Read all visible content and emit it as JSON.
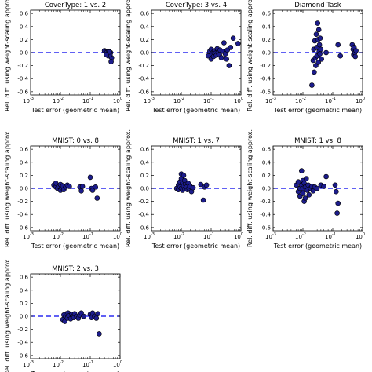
{
  "chart_data": [
    {
      "type": "scatter",
      "title": "CoverType: 1 vs. 2",
      "xlabel": "Test error (geometric mean)",
      "ylabel": "Rel. diff. using weight-scaling approx.",
      "xscale": "log",
      "xlim": [
        0.001,
        1
      ],
      "ylim": [
        -0.65,
        0.65
      ],
      "xticks": [
        "10^-3",
        "10^-2",
        "10^-1",
        "10^0"
      ],
      "yticks": [
        "0.6",
        "0.4",
        "0.2",
        "0.0",
        "-0.2",
        "-0.4",
        "-0.6"
      ],
      "reference_line": 0.0,
      "points": [
        [
          0.3,
          0.03
        ],
        [
          0.34,
          0.01
        ],
        [
          0.38,
          -0.01
        ],
        [
          0.36,
          0.0
        ],
        [
          0.42,
          0.02
        ],
        [
          0.45,
          -0.02
        ],
        [
          0.4,
          -0.05
        ],
        [
          0.48,
          0.0
        ],
        [
          0.52,
          -0.08
        ],
        [
          0.5,
          -0.14
        ],
        [
          0.46,
          -0.03
        ],
        [
          0.35,
          -0.03
        ],
        [
          0.44,
          0.01
        ]
      ]
    },
    {
      "type": "scatter",
      "title": "CoverType: 3 vs. 4",
      "xlabel": "Test error (geometric mean)",
      "ylabel": "Rel. diff. using weight-scaling approx.",
      "xscale": "log",
      "xlim": [
        0.001,
        1
      ],
      "ylim": [
        -0.65,
        0.65
      ],
      "xticks": [
        "10^-3",
        "10^-2",
        "10^-1",
        "10^0"
      ],
      "yticks": [
        "0.6",
        "0.4",
        "0.2",
        "0.0",
        "-0.2",
        "-0.4",
        "-0.6"
      ],
      "reference_line": 0.0,
      "points": [
        [
          0.08,
          -0.05
        ],
        [
          0.09,
          0.02
        ],
        [
          0.1,
          -0.1
        ],
        [
          0.1,
          0.05
        ],
        [
          0.11,
          -0.03
        ],
        [
          0.12,
          0.01
        ],
        [
          0.12,
          -0.06
        ],
        [
          0.13,
          0.03
        ],
        [
          0.14,
          -0.01
        ],
        [
          0.15,
          -0.04
        ],
        [
          0.16,
          0.06
        ],
        [
          0.17,
          0.0
        ],
        [
          0.19,
          -0.03
        ],
        [
          0.2,
          0.04
        ],
        [
          0.22,
          -0.08
        ],
        [
          0.25,
          0.02
        ],
        [
          0.27,
          0.15
        ],
        [
          0.3,
          -0.02
        ],
        [
          0.33,
          -0.1
        ],
        [
          0.35,
          0.04
        ],
        [
          0.4,
          -0.2
        ],
        [
          0.45,
          0.08
        ],
        [
          0.55,
          0.22
        ],
        [
          0.8,
          0.14
        ]
      ]
    },
    {
      "type": "scatter",
      "title": "Diamond Task",
      "xlabel": "Test error (geometric mean)",
      "ylabel": "Rel. diff. using weight-scaling approx.",
      "xscale": "log",
      "xlim": [
        0.001,
        1
      ],
      "ylim": [
        -0.65,
        0.65
      ],
      "xticks": [
        "10^-3",
        "10^-2",
        "10^-1",
        "10^0"
      ],
      "yticks": [
        "0.6",
        "0.4",
        "0.2",
        "0.0",
        "-0.2",
        "-0.4",
        "-0.6"
      ],
      "reference_line": 0.0,
      "points": [
        [
          0.02,
          -0.5
        ],
        [
          0.022,
          -0.12
        ],
        [
          0.023,
          0.05
        ],
        [
          0.024,
          -0.3
        ],
        [
          0.025,
          0.18
        ],
        [
          0.026,
          -0.08
        ],
        [
          0.027,
          -0.2
        ],
        [
          0.028,
          0.28
        ],
        [
          0.029,
          0.08
        ],
        [
          0.03,
          -0.05
        ],
        [
          0.031,
          0.45
        ],
        [
          0.032,
          0.2
        ],
        [
          0.033,
          -0.15
        ],
        [
          0.034,
          0.35
        ],
        [
          0.035,
          0.02
        ],
        [
          0.036,
          0.12
        ],
        [
          0.037,
          -0.02
        ],
        [
          0.038,
          0.22
        ],
        [
          0.04,
          0.05
        ],
        [
          0.042,
          -0.1
        ],
        [
          0.06,
          0.0
        ],
        [
          0.15,
          0.12
        ],
        [
          0.18,
          -0.05
        ],
        [
          0.45,
          0.12
        ],
        [
          0.48,
          0.05
        ],
        [
          0.5,
          -0.03
        ],
        [
          0.52,
          0.08
        ],
        [
          0.55,
          0.0
        ],
        [
          0.57,
          -0.06
        ],
        [
          0.6,
          0.03
        ]
      ]
    },
    {
      "type": "scatter",
      "title": "MNIST: 0 vs. 8",
      "xlabel": "Test error (geometric mean)",
      "ylabel": "Rel. diff. using weight-scaling approx.",
      "xscale": "log",
      "xlim": [
        0.001,
        1
      ],
      "ylim": [
        -0.65,
        0.65
      ],
      "xticks": [
        "10^-3",
        "10^-2",
        "10^-1",
        "10^0"
      ],
      "yticks": [
        "0.6",
        "0.4",
        "0.2",
        "0.0",
        "-0.2",
        "-0.4",
        "-0.6"
      ],
      "reference_line": 0.0,
      "points": [
        [
          0.006,
          0.05
        ],
        [
          0.007,
          0.02
        ],
        [
          0.007,
          0.08
        ],
        [
          0.008,
          0.0
        ],
        [
          0.009,
          0.03
        ],
        [
          0.01,
          0.06
        ],
        [
          0.01,
          -0.03
        ],
        [
          0.011,
          0.01
        ],
        [
          0.012,
          0.04
        ],
        [
          0.013,
          -0.02
        ],
        [
          0.015,
          0.02
        ],
        [
          0.017,
          0.05
        ],
        [
          0.02,
          0.03
        ],
        [
          0.045,
          0.02
        ],
        [
          0.05,
          -0.04
        ],
        [
          0.055,
          0.03
        ],
        [
          0.1,
          0.17
        ],
        [
          0.11,
          0.0
        ],
        [
          0.12,
          -0.03
        ],
        [
          0.15,
          0.02
        ],
        [
          0.17,
          -0.15
        ]
      ]
    },
    {
      "type": "scatter",
      "title": "MNIST: 1 vs. 7",
      "xlabel": "Test error (geometric mean)",
      "ylabel": "Rel. diff. using weight-scaling approx.",
      "xscale": "log",
      "xlim": [
        0.001,
        1
      ],
      "ylim": [
        -0.65,
        0.65
      ],
      "xticks": [
        "10^-3",
        "10^-2",
        "10^-1",
        "10^0"
      ],
      "yticks": [
        "0.6",
        "0.4",
        "0.2",
        "0.0",
        "-0.2",
        "-0.4",
        "-0.6"
      ],
      "reference_line": 0.0,
      "points": [
        [
          0.007,
          0.0
        ],
        [
          0.008,
          0.05
        ],
        [
          0.008,
          -0.02
        ],
        [
          0.009,
          0.1
        ],
        [
          0.009,
          0.02
        ],
        [
          0.01,
          0.22
        ],
        [
          0.01,
          0.15
        ],
        [
          0.01,
          0.0
        ],
        [
          0.011,
          0.08
        ],
        [
          0.011,
          -0.03
        ],
        [
          0.012,
          0.2
        ],
        [
          0.012,
          0.04
        ],
        [
          0.013,
          0.12
        ],
        [
          0.013,
          -0.01
        ],
        [
          0.014,
          0.06
        ],
        [
          0.015,
          0.02
        ],
        [
          0.016,
          -0.02
        ],
        [
          0.017,
          0.08
        ],
        [
          0.018,
          0.0
        ],
        [
          0.02,
          0.03
        ],
        [
          0.022,
          -0.05
        ],
        [
          0.025,
          0.01
        ],
        [
          0.045,
          0.06
        ],
        [
          0.055,
          -0.18
        ],
        [
          0.06,
          0.02
        ],
        [
          0.07,
          0.05
        ]
      ]
    },
    {
      "type": "scatter",
      "title": "MNIST: 1 vs. 8",
      "xlabel": "Test error (geometric mean)",
      "ylabel": "Rel. diff. using weight-scaling approx.",
      "xscale": "log",
      "xlim": [
        0.001,
        1
      ],
      "ylim": [
        -0.65,
        0.65
      ],
      "xticks": [
        "10^-3",
        "10^-2",
        "10^-1",
        "10^0"
      ],
      "yticks": [
        "0.6",
        "0.4",
        "0.2",
        "0.0",
        "-0.2",
        "-0.4",
        "-0.6"
      ],
      "reference_line": 0.0,
      "points": [
        [
          0.006,
          0.05
        ],
        [
          0.007,
          -0.05
        ],
        [
          0.007,
          0.1
        ],
        [
          0.008,
          0.0
        ],
        [
          0.008,
          -0.12
        ],
        [
          0.009,
          0.27
        ],
        [
          0.009,
          0.05
        ],
        [
          0.01,
          -0.08
        ],
        [
          0.01,
          0.12
        ],
        [
          0.01,
          0.0
        ],
        [
          0.011,
          -0.2
        ],
        [
          0.011,
          0.08
        ],
        [
          0.012,
          0.02
        ],
        [
          0.012,
          -0.15
        ],
        [
          0.013,
          0.15
        ],
        [
          0.014,
          -0.03
        ],
        [
          0.015,
          0.05
        ],
        [
          0.016,
          -0.1
        ],
        [
          0.018,
          0.0
        ],
        [
          0.02,
          0.03
        ],
        [
          0.022,
          -0.04
        ],
        [
          0.025,
          0.02
        ],
        [
          0.03,
          0.0
        ],
        [
          0.04,
          0.05
        ],
        [
          0.05,
          0.03
        ],
        [
          0.06,
          0.18
        ],
        [
          0.12,
          0.05
        ],
        [
          0.13,
          -0.05
        ],
        [
          0.14,
          -0.38
        ],
        [
          0.15,
          -0.23
        ]
      ]
    },
    {
      "type": "scatter",
      "title": "MNIST: 2 vs. 3",
      "xlabel": "Test error (geometric mean)",
      "ylabel": "Rel. diff. using weight-scaling approx.",
      "xscale": "log",
      "xlim": [
        0.001,
        1
      ],
      "ylim": [
        -0.65,
        0.65
      ],
      "xticks": [
        "10^-3",
        "10^-2",
        "10^-1",
        "10^0"
      ],
      "yticks": [
        "0.6",
        "0.4",
        "0.2",
        "0.0",
        "-0.2",
        "-0.4",
        "-0.6"
      ],
      "reference_line": 0.0,
      "points": [
        [
          0.012,
          -0.05
        ],
        [
          0.013,
          0.02
        ],
        [
          0.014,
          -0.08
        ],
        [
          0.015,
          0.0
        ],
        [
          0.016,
          0.04
        ],
        [
          0.017,
          -0.03
        ],
        [
          0.018,
          0.05
        ],
        [
          0.02,
          0.01
        ],
        [
          0.022,
          -0.04
        ],
        [
          0.024,
          0.03
        ],
        [
          0.026,
          0.0
        ],
        [
          0.028,
          -0.02
        ],
        [
          0.03,
          0.04
        ],
        [
          0.035,
          0.0
        ],
        [
          0.04,
          -0.03
        ],
        [
          0.045,
          0.02
        ],
        [
          0.05,
          0.05
        ],
        [
          0.06,
          0.0
        ],
        [
          0.1,
          0.03
        ],
        [
          0.11,
          -0.02
        ],
        [
          0.12,
          0.05
        ],
        [
          0.14,
          0.0
        ],
        [
          0.16,
          -0.03
        ],
        [
          0.18,
          0.04
        ],
        [
          0.2,
          -0.27
        ]
      ]
    }
  ]
}
